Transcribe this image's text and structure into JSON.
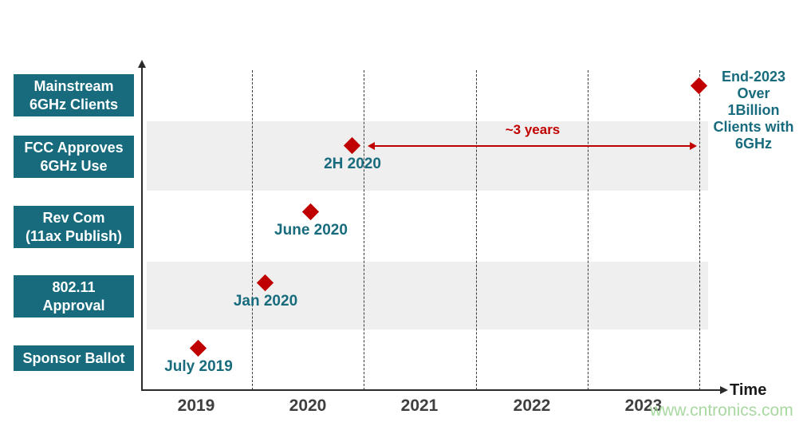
{
  "watermark": "www.cntronics.com",
  "colors": {
    "teal": "#176B7D",
    "dark_red": "#C00000",
    "band_gray": "#EFEFEF",
    "year_text": "#3F3F3F",
    "watermark_green": "#A9D8A1"
  },
  "chart_data": {
    "type": "scatter",
    "chart_kind": "milestone-timeline",
    "title": "",
    "xlabel": "Time",
    "grid": "vertical-dashed-year-boundaries",
    "x_ticks": [
      {
        "label": "2019",
        "year": 2019
      },
      {
        "label": "2020",
        "year": 2020
      },
      {
        "label": "2021",
        "year": 2021
      },
      {
        "label": "2022",
        "year": 2022
      },
      {
        "label": "2023",
        "year": 2023
      }
    ],
    "gridline_years": [
      2020,
      2021,
      2022,
      2023,
      2024
    ],
    "x_range_years": [
      2018.55,
      2024.35
    ],
    "marker": {
      "shape": "diamond",
      "color": "#C00000"
    },
    "rows": [
      {
        "category_lines": [
          "Mainstream",
          "6GHz Clients"
        ],
        "point_label_lines": [
          "End-2023",
          "Over",
          "1Billion",
          "Clients with",
          "6GHz"
        ],
        "x": 2024.0,
        "label_position": "right",
        "band": false
      },
      {
        "category_lines": [
          "FCC Approves",
          "6GHz Use"
        ],
        "point_label": "2H 2020",
        "x": 2020.9,
        "label_position": "below",
        "band": true
      },
      {
        "category_lines": [
          "Rev Com",
          "(11ax Publish)"
        ],
        "point_label": "June 2020",
        "x": 2020.53,
        "label_position": "below",
        "band": false
      },
      {
        "category_lines": [
          "802.11",
          "Approval"
        ],
        "point_label": "Jan 2020",
        "x": 2020.12,
        "label_position": "below",
        "band": true
      },
      {
        "category_lines": [
          "Sponsor Ballot"
        ],
        "point_label": "July 2019",
        "x": 2019.52,
        "label_position": "below",
        "band": false
      }
    ],
    "annotation": {
      "text": "~3 years",
      "x_start": 2021.07,
      "x_end": 2023.93,
      "between": [
        "2H 2020",
        "End-2023"
      ]
    }
  }
}
